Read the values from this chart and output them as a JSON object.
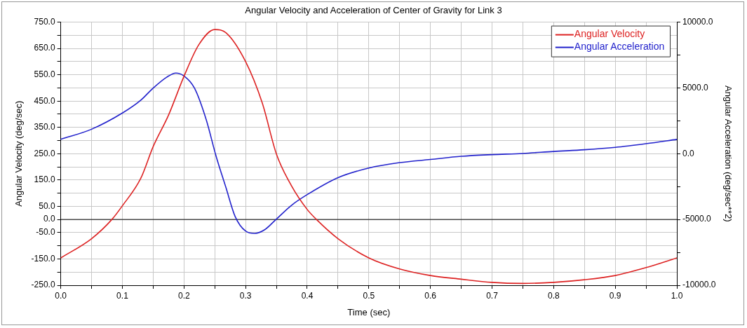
{
  "chart_data": {
    "type": "line",
    "title": "Angular Velocity and Acceleration of Center of Gravity for Link 3",
    "xlabel": "Time (sec)",
    "ylabel": "Angular Velocity (deg/sec)",
    "y2label": "Angular Acceleration (deg/sec**2)",
    "xlim": [
      0,
      1
    ],
    "xticks": [
      {
        "value": 0,
        "label": "0.0"
      },
      {
        "value": 0.05,
        "label": null
      },
      {
        "value": 0.1,
        "label": "0.1"
      },
      {
        "value": 0.15,
        "label": null
      },
      {
        "value": 0.2,
        "label": "0.2"
      },
      {
        "value": 0.25,
        "label": null
      },
      {
        "value": 0.3,
        "label": "0.3"
      },
      {
        "value": 0.35,
        "label": null
      },
      {
        "value": 0.4,
        "label": "0.4"
      },
      {
        "value": 0.45,
        "label": null
      },
      {
        "value": 0.5,
        "label": "0.5"
      },
      {
        "value": 0.55,
        "label": null
      },
      {
        "value": 0.6,
        "label": "0.6"
      },
      {
        "value": 0.65,
        "label": null
      },
      {
        "value": 0.7,
        "label": "0.7"
      },
      {
        "value": 0.75,
        "label": null
      },
      {
        "value": 0.8,
        "label": "0.8"
      },
      {
        "value": 0.85,
        "label": null
      },
      {
        "value": 0.9,
        "label": "0.9"
      },
      {
        "value": 0.95,
        "label": null
      },
      {
        "value": 1,
        "label": "1.0"
      }
    ],
    "ylim": [
      -250,
      750
    ],
    "yticks": [
      {
        "value": -250,
        "label": "-250.0"
      },
      {
        "value": -200,
        "label": null
      },
      {
        "value": -150,
        "label": "-150.0"
      },
      {
        "value": -100,
        "label": null
      },
      {
        "value": -50,
        "label": "-50.0"
      },
      {
        "value": 0,
        "label": "0.0"
      },
      {
        "value": 50,
        "label": "50.0"
      },
      {
        "value": 100,
        "label": null
      },
      {
        "value": 150,
        "label": "150.0"
      },
      {
        "value": 200,
        "label": null
      },
      {
        "value": 250,
        "label": "250.0"
      },
      {
        "value": 300,
        "label": null
      },
      {
        "value": 350,
        "label": "350.0"
      },
      {
        "value": 400,
        "label": null
      },
      {
        "value": 450,
        "label": "450.0"
      },
      {
        "value": 500,
        "label": null
      },
      {
        "value": 550,
        "label": "550.0"
      },
      {
        "value": 600,
        "label": null
      },
      {
        "value": 650,
        "label": "650.0"
      },
      {
        "value": 700,
        "label": null
      },
      {
        "value": 750,
        "label": "750.0"
      }
    ],
    "y2lim": [
      -10000,
      10000
    ],
    "y2ticks": [
      {
        "value": -10000,
        "label": "-10000.0"
      },
      {
        "value": -7500,
        "label": null
      },
      {
        "value": -5000,
        "label": "-5000.0"
      },
      {
        "value": -2500,
        "label": null
      },
      {
        "value": 0,
        "label": "0.0"
      },
      {
        "value": 2500,
        "label": null
      },
      {
        "value": 5000,
        "label": "5000.0"
      },
      {
        "value": 7500,
        "label": null
      },
      {
        "value": 10000,
        "label": "10000.0"
      }
    ],
    "grid": true,
    "legend": "top right",
    "line_style": "solid",
    "marker": "none",
    "ref_lines": [
      {
        "axis": "y",
        "value": 0,
        "color": "#000000"
      }
    ],
    "series": [
      {
        "name": "Angular Velocity",
        "color": "#dd2222",
        "x": [
          0,
          0.05,
          0.083,
          0.1,
          0.13,
          0.15,
          0.175,
          0.2,
          0.224,
          0.25,
          0.268,
          0.3,
          0.327,
          0.35,
          0.374,
          0.4,
          0.415,
          0.45,
          0.5,
          0.55,
          0.6,
          0.65,
          0.7,
          0.75,
          0.8,
          0.85,
          0.9,
          0.95,
          1
        ],
        "values": [
          -146,
          -73,
          0,
          52,
          157,
          277,
          397,
          544,
          664,
          722,
          710,
          600,
          443,
          249,
          130,
          38,
          0,
          -73,
          -146,
          -188,
          -213,
          -227,
          -239,
          -243,
          -239,
          -229,
          -213,
          -183,
          -146
        ]
      },
      {
        "name": "Angular Acceleration",
        "color": "#2222cc",
        "axis": "y2",
        "x": [
          0,
          0.05,
          0.1,
          0.13,
          0.15,
          0.172,
          0.187,
          0.2,
          0.217,
          0.236,
          0.252,
          0.268,
          0.283,
          0.3,
          0.315,
          0.331,
          0.35,
          0.374,
          0.4,
          0.45,
          0.5,
          0.55,
          0.6,
          0.65,
          0.7,
          0.75,
          0.8,
          0.85,
          0.9,
          0.95,
          1
        ],
        "values": [
          1090,
          1860,
          3090,
          4070,
          4990,
          5820,
          6130,
          5910,
          4990,
          2600,
          -170,
          -2560,
          -4770,
          -5880,
          -6060,
          -5780,
          -4970,
          -3940,
          -3110,
          -1820,
          -1090,
          -680,
          -440,
          -200,
          -70,
          20,
          170,
          300,
          480,
          760,
          1090
        ]
      }
    ]
  }
}
